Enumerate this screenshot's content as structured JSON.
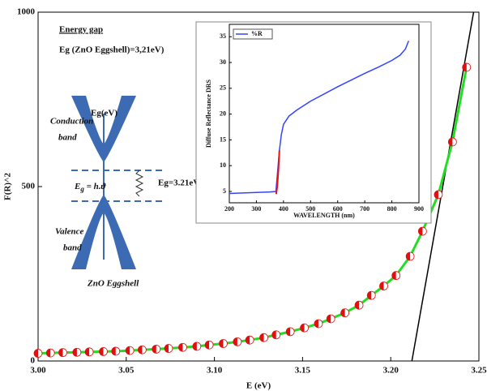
{
  "chart_data": [
    {
      "type": "scatter",
      "xlabel": "E (eV)",
      "ylabel": "F(R)^2",
      "xlim": [
        3.0,
        3.25
      ],
      "ylim": [
        0,
        1000
      ],
      "xticks": [
        {
          "value": 3.0,
          "label": "3.00"
        },
        {
          "value": 3.05,
          "label": "3.05"
        },
        {
          "value": 3.1,
          "label": "3.10"
        },
        {
          "value": 3.15,
          "label": "3.15"
        },
        {
          "value": 3.2,
          "label": "3.20"
        },
        {
          "value": 3.25,
          "label": "3.25"
        }
      ],
      "yticks": [
        0,
        500,
        1000
      ],
      "x": [
        3.0,
        3.007,
        3.014,
        3.022,
        3.029,
        3.037,
        3.044,
        3.052,
        3.059,
        3.067,
        3.074,
        3.082,
        3.09,
        3.097,
        3.105,
        3.113,
        3.12,
        3.128,
        3.135,
        3.143,
        3.151,
        3.159,
        3.166,
        3.174,
        3.182,
        3.189,
        3.196,
        3.203,
        3.211,
        3.218,
        3.227,
        3.235,
        3.243
      ],
      "values": [
        22,
        23,
        24,
        25,
        26,
        27,
        28,
        30,
        32,
        34,
        36,
        39,
        42,
        46,
        50,
        55,
        60,
        67,
        75,
        84,
        95,
        107,
        121,
        138,
        160,
        188,
        215,
        245,
        300,
        372,
        477,
        628,
        842
      ],
      "color": "#e01010",
      "fit_color": "#22dd22",
      "tangent": {
        "x": [
          3.212,
          3.247
        ],
        "y": [
          0,
          1000
        ],
        "color": "#000000"
      },
      "annotations": [
        "Energy gap",
        "Eg (ZnO Eggshell)=3,21eV)",
        "Eg(eV)",
        "Conduction",
        "band",
        "Eg=3.21eV",
        "Valence",
        "band",
        "ZnO Eggshell"
      ],
      "formula": {
        "lhs": "E",
        "sub": "g",
        "rhs": " = h.ϑ"
      }
    },
    {
      "type": "line",
      "xlabel": "WAVELENGTH (nm)",
      "ylabel": "Diffuse Reflectance DRS",
      "xlim": [
        200,
        900
      ],
      "ylim": [
        2.8,
        37.4
      ],
      "xticks": [
        200,
        300,
        400,
        500,
        600,
        700,
        800,
        900
      ],
      "yticks": [
        5,
        10,
        15,
        20,
        25,
        30,
        35
      ],
      "series": [
        {
          "name": "%R",
          "color": "#3344ff",
          "x": [
            200,
            250,
            300,
            350,
            372,
            385,
            392,
            400,
            420,
            450,
            500,
            600,
            700,
            750,
            800,
            830,
            850,
            862
          ],
          "values": [
            4.6,
            4.7,
            4.8,
            4.9,
            5.0,
            13,
            16,
            18,
            19.6,
            20.8,
            22.5,
            25.3,
            27.9,
            29.1,
            30.4,
            31.4,
            32.6,
            34.2
          ]
        }
      ],
      "edge": {
        "x": [
          373,
          377,
          381,
          385
        ],
        "values": [
          4.5,
          6,
          9,
          13
        ],
        "color": "#ee1111"
      }
    }
  ]
}
